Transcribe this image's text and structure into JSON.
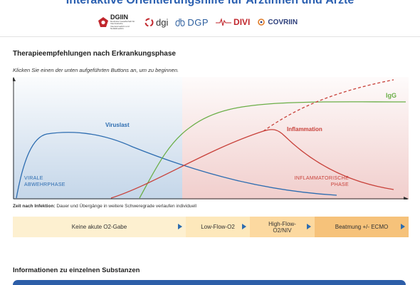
{
  "header": {
    "title": "Interaktive Orientierungshilfe für Ärztinnen und Ärzte"
  },
  "logos": {
    "dgiin": "DGIIN",
    "dgiin_sub": "Deutsche Gesellschaft für Internistische Intensivmedizin und Notfallmedizin",
    "dgi": "dgi",
    "dgp": "DGP",
    "divi": "DIVI",
    "covriin": "COVRIIN"
  },
  "therapy": {
    "title": "Therapieempfehlungen nach Erkrankungsphase",
    "instruction": "Klicken Sie einen der unten aufgeführten Buttons an, um zu beginnen."
  },
  "chart_labels": {
    "viruslast": "Viruslast",
    "igg": "IgG",
    "inflammation": "Inflammation",
    "virale_line1": "VIRALE",
    "virale_line2": "ABWEHRPHASE",
    "inflam_line1": "INFLAMMATORISCHE",
    "inflam_line2": "PHASE"
  },
  "colors": {
    "viral_blue": "#2c6cb0",
    "igg_green": "#6aae47",
    "inflammation_red": "#c8413a",
    "phase_bg_1": "#fdf0d0",
    "phase_bg_4": "#f6c27a"
  },
  "axis_caption": {
    "bold": "Zeit nach Infektion:",
    "rest": " Dauer und Übergänge in weitere Schweregrade verlaufen individuell"
  },
  "phases": [
    {
      "label": "Keine akute O2-Gabe"
    },
    {
      "label": "Low-Flow-O2"
    },
    {
      "label_line1": "High-Flow-",
      "label_line2": "O2/NIV"
    },
    {
      "label": "Beatmung +/- ECMO"
    }
  ],
  "substances": {
    "heading": "Informationen zu einzelnen Substanzen"
  }
}
